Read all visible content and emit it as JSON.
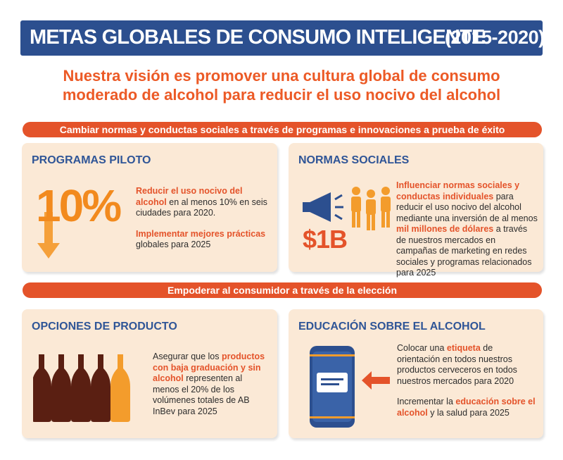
{
  "header": {
    "title": "METAS GLOBALES DE CONSUMO INTELIGENTE",
    "years": "(2015-2020)"
  },
  "vision": {
    "line1": "Nuestra visión es promover una cultura global de consumo",
    "line2": "moderado de alcohol para reducir el uso nocivo del alcohol"
  },
  "section1": {
    "banner": "Cambiar normas y conductas sociales a través de programas e innovaciones a prueba de éxito",
    "pilot": {
      "title": "PROGRAMAS PILOTO",
      "big_number": "10%",
      "p1_hl": "Reducir el uso nocivo del alcohol",
      "p1_rest": " en al menos 10% en seis ciudades para 2020.",
      "p2_hl": "Implementar mejores prácticas",
      "p2_rest": " globales para 2025"
    },
    "social": {
      "title": "NORMAS SOCIALES",
      "amount": "$1B",
      "hl1": "Influenciar normas sociales y conductas individuales",
      "text1": " para reducir el uso nocivo del alcohol mediante una inversión de al menos ",
      "hl2": "mil millones de dólares",
      "text2": " a través de nuestros mercados en campañas de marketing en redes sociales y programas relacionados para 2025"
    }
  },
  "section2": {
    "banner": "Empoderar al consumidor a través de la elección",
    "product": {
      "title": "OPCIONES DE PRODUCTO",
      "text1": "Asegurar que los ",
      "hl1": "productos con baja graduación y sin alcohol",
      "text2": " representen al menos el 20% de los volúmenes totales de AB InBev para 2025"
    },
    "education": {
      "title": "EDUCACIÓN SOBRE EL ALCOHOL",
      "p1a": "Colocar una ",
      "p1hl": "etiqueta",
      "p1b": " de orientación en todos nuestros productos cerveceros en todos nuestros mercados para 2020",
      "p2a": "Incrementar la ",
      "p2hl": "educación sobre el alcohol",
      "p2b": " y la salud para 2025"
    }
  },
  "colors": {
    "navy": "#2c4f8f",
    "orange": "#e4532a",
    "card_bg": "#fbe9d6",
    "title_blue": "#2f5597",
    "bottle_dark": "#5a1f12",
    "bottle_light": "#f39c2c"
  },
  "icons": [
    "arrow-down-icon",
    "megaphone-icon",
    "people-icon",
    "bottles-icon",
    "beer-can-icon",
    "arrow-left-icon"
  ]
}
